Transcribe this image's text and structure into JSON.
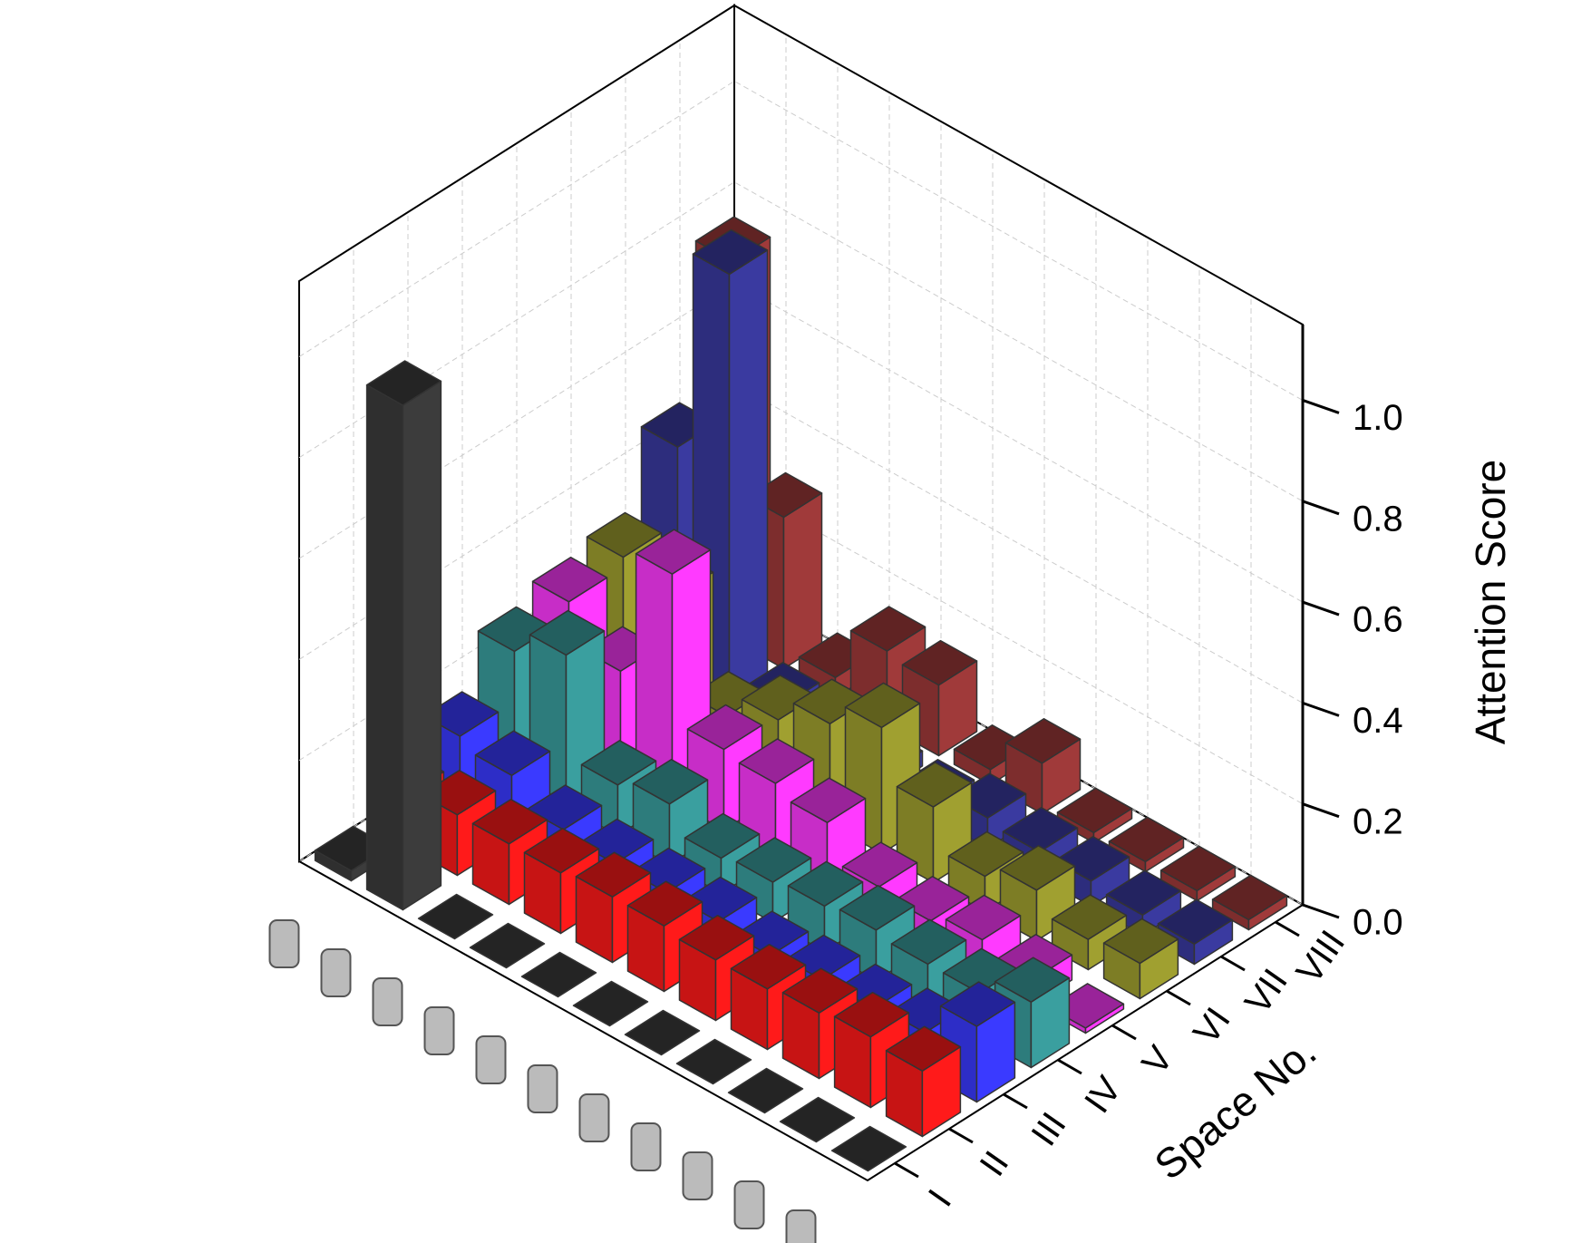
{
  "chart_data": {
    "type": "bar3d",
    "z_title": "Attention Score",
    "y_title": "Space No.",
    "categories": [
      null,
      null,
      null,
      null,
      null,
      null,
      null,
      null,
      null,
      null,
      null
    ],
    "series": [
      {
        "name": "I",
        "color": "#3c3c3c",
        "values": [
          0.02,
          1.0,
          0,
          0,
          0,
          0,
          0,
          0,
          0,
          0,
          0
        ]
      },
      {
        "name": "II",
        "color": "#ff1a1a",
        "values": [
          0.1,
          0.12,
          0.12,
          0.12,
          0.13,
          0.13,
          0.12,
          0.12,
          0.13,
          0.14,
          0.13
        ]
      },
      {
        "name": "III",
        "color": "#3a3aff",
        "values": [
          0.15,
          0.13,
          0.08,
          0.07,
          0.07,
          0.07,
          0.06,
          0.07,
          0.07,
          0.08,
          0.15
        ]
      },
      {
        "name": "IV",
        "color": "#3a9f9f",
        "values": [
          0.25,
          0.3,
          0.1,
          0.12,
          0.07,
          0.08,
          0.09,
          0.1,
          0.09,
          0.09,
          0.13
        ]
      },
      {
        "name": "V",
        "color": "#ff3aff",
        "values": [
          0.28,
          0.2,
          0.45,
          0.16,
          0.15,
          0.13,
          0.06,
          0.05,
          0.07,
          0.05,
          0.01
        ]
      },
      {
        "name": "VI",
        "color": "#a0a030",
        "values": [
          0.3,
          0.28,
          0.1,
          0.15,
          0.2,
          0.25,
          0.15,
          0.07,
          0.1,
          0.06,
          0.07
        ]
      },
      {
        "name": "VII",
        "color": "#3a3aa0",
        "values": [
          0.45,
          0.85,
          0.05,
          0.02,
          0.03,
          0.03,
          0.06,
          0.05,
          0.05,
          0.04,
          0.04
        ]
      },
      {
        "name": "VIII",
        "color": "#a03a3a",
        "values": [
          0.75,
          0.3,
          0.04,
          0.15,
          0.14,
          0.03,
          0.1,
          0.02,
          0.02,
          0.02,
          0.02
        ]
      }
    ],
    "zlim": [
      0,
      1.15
    ],
    "zticks": [
      {
        "value": 0,
        "label": "0.0"
      },
      0.2,
      0.4,
      0.6,
      0.8,
      {
        "value": 1,
        "label": "1.0"
      }
    ],
    "grid": true
  }
}
